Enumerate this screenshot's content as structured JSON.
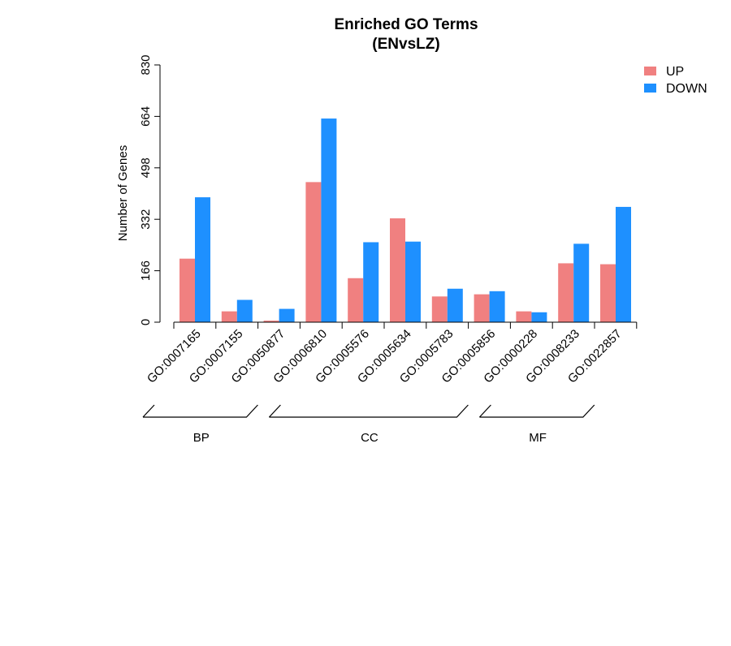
{
  "chart_data": {
    "type": "bar",
    "title": "Enriched GO Terms",
    "subtitle": "(ENvsLZ)",
    "xlabel": "",
    "ylabel": "Number of Genes",
    "ylim": [
      0,
      830
    ],
    "yticks": [
      0,
      166,
      332,
      498,
      664,
      830
    ],
    "grid": false,
    "legend_position": "top-right",
    "categories": [
      "GO:0007165",
      "GO:0007155",
      "GO:0050877",
      "GO:0006810",
      "GO:0005576",
      "GO:0005634",
      "GO:0005783",
      "GO:0005856",
      "GO:0000228",
      "GO:0008233",
      "GO:0022857"
    ],
    "groups": [
      {
        "label": "BP",
        "members": [
          "GO:0007165",
          "GO:0007155",
          "GO:0050877"
        ]
      },
      {
        "label": "CC",
        "members": [
          "GO:0006810",
          "GO:0005576",
          "GO:0005634",
          "GO:0005783",
          "GO:0005856"
        ]
      },
      {
        "label": "MF",
        "members": [
          "GO:0000228",
          "GO:0008233",
          "GO:0022857"
        ]
      }
    ],
    "series": [
      {
        "name": "UP",
        "color": "#F08080",
        "values": [
          205,
          35,
          5,
          452,
          142,
          335,
          83,
          90,
          35,
          190,
          187
        ]
      },
      {
        "name": "DOWN",
        "color": "#1E90FF",
        "values": [
          403,
          72,
          43,
          657,
          258,
          260,
          108,
          100,
          32,
          253,
          372
        ]
      }
    ]
  }
}
